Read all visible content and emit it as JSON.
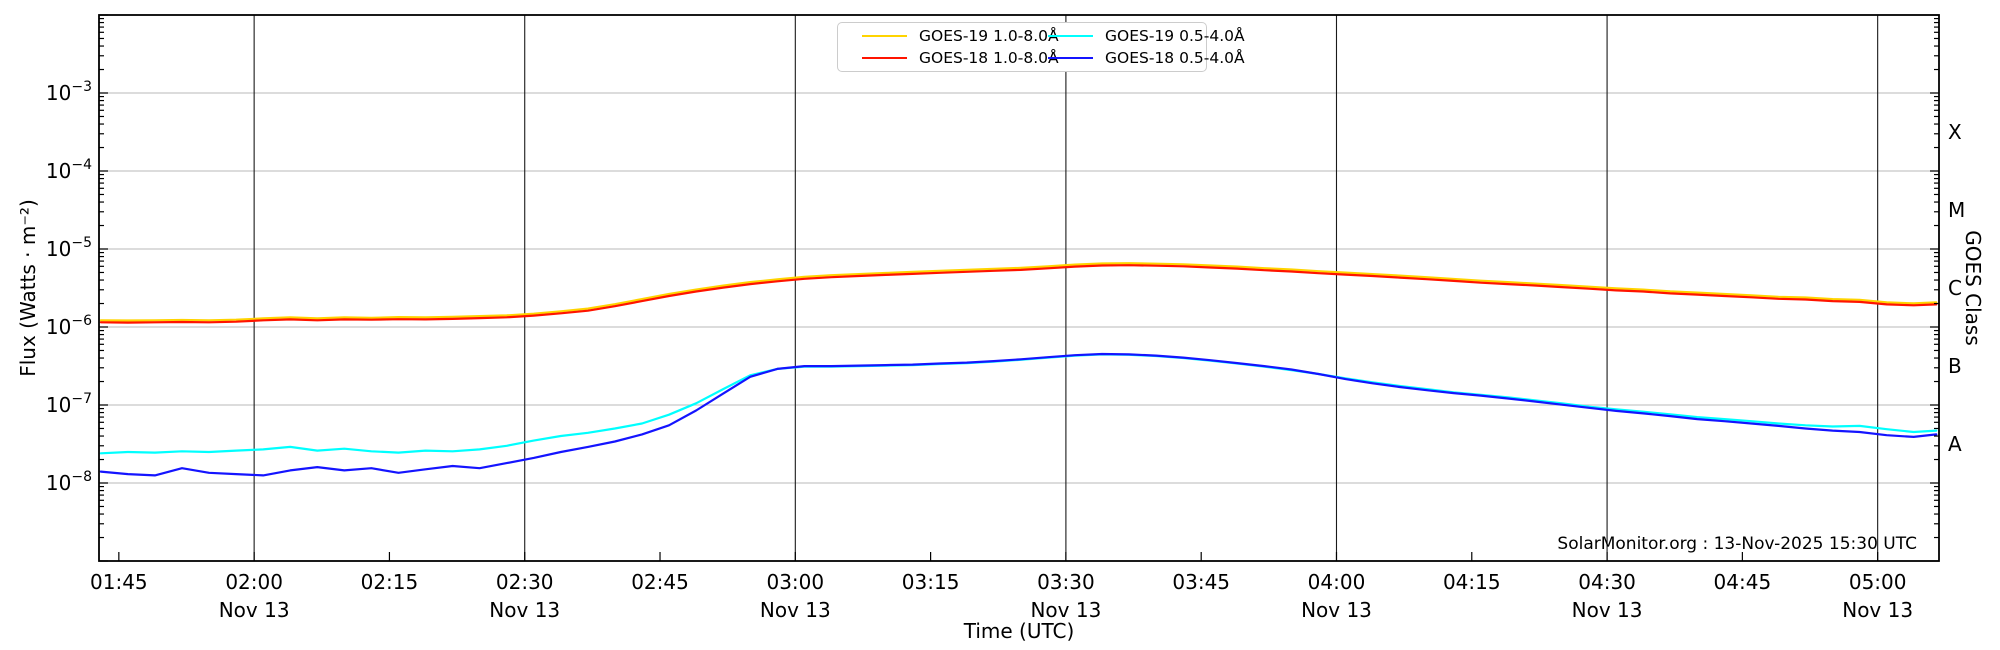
{
  "attribution": "SolarMonitor.org : 13-Nov-2025 15:30 UTC",
  "axes": {
    "x_label": "Time (UTC)",
    "y_label": "Flux (Watts · m⁻²)",
    "right_label": "GOES Class",
    "y_tick_exponents": [
      -3,
      -4,
      -5,
      -6,
      -7,
      -8
    ],
    "x_ticks": [
      {
        "t": 105,
        "label": "01:45"
      },
      {
        "t": 120,
        "label": "02:00",
        "date": "Nov 13"
      },
      {
        "t": 135,
        "label": "02:15"
      },
      {
        "t": 150,
        "label": "02:30",
        "date": "Nov 13"
      },
      {
        "t": 165,
        "label": "02:45"
      },
      {
        "t": 180,
        "label": "03:00",
        "date": "Nov 13"
      },
      {
        "t": 195,
        "label": "03:15"
      },
      {
        "t": 210,
        "label": "03:30",
        "date": "Nov 13"
      },
      {
        "t": 225,
        "label": "03:45"
      },
      {
        "t": 240,
        "label": "04:00",
        "date": "Nov 13"
      },
      {
        "t": 255,
        "label": "04:15"
      },
      {
        "t": 270,
        "label": "04:30",
        "date": "Nov 13"
      },
      {
        "t": 285,
        "label": "04:45"
      },
      {
        "t": 300,
        "label": "05:00",
        "date": "Nov 13"
      }
    ],
    "goes_classes": [
      {
        "label": "X",
        "log_center": -3.5
      },
      {
        "label": "M",
        "log_center": -4.5
      },
      {
        "label": "C",
        "log_center": -5.5
      },
      {
        "label": "B",
        "log_center": -6.5
      },
      {
        "label": "A",
        "log_center": -7.5
      }
    ]
  },
  "legend": {
    "items": [
      {
        "id": "goes-19-long",
        "label": "GOES-19 1.0-8.0Å",
        "color": "#ffd400"
      },
      {
        "id": "goes-18-long",
        "label": "GOES-18 1.0-8.0Å",
        "color": "#ff1400"
      },
      {
        "id": "goes-19-short",
        "label": "GOES-19 0.5-4.0Å",
        "color": "#00ffff"
      },
      {
        "id": "goes-18-short",
        "label": "GOES-18 0.5-4.0Å",
        "color": "#1414ff"
      }
    ]
  },
  "style": {
    "x_grid_color": "#1a1a1a",
    "y_grid_color": "#c8c8c8",
    "spine_color": "#000000",
    "line_width": 2.2
  },
  "chart_data": {
    "type": "line",
    "title": "GOES X-ray flux",
    "xlabel": "Time (UTC)",
    "ylabel": "Flux (Watts · m⁻²)",
    "x_unit": "minutes after 00:00 UTC on 13-Nov-2025",
    "xlim_minutes": [
      102.8,
      306.8
    ],
    "ylim": [
      1e-09,
      0.01
    ],
    "y_scale": "log",
    "grid": true,
    "legend_position": "top center, 2 columns",
    "x": [
      103,
      106,
      109,
      112,
      115,
      118,
      121,
      124,
      127,
      130,
      133,
      136,
      139,
      142,
      145,
      148,
      151,
      154,
      157,
      160,
      163,
      166,
      169,
      172,
      175,
      178,
      181,
      184,
      187,
      190,
      193,
      196,
      199,
      202,
      205,
      208,
      211,
      214,
      217,
      220,
      223,
      226,
      229,
      232,
      235,
      238,
      241,
      244,
      247,
      250,
      253,
      256,
      259,
      262,
      265,
      268,
      271,
      274,
      277,
      280,
      283,
      286,
      289,
      292,
      295,
      298,
      301,
      304,
      306.5
    ],
    "series": [
      {
        "name": "GOES-19 1.0-8.0Å",
        "color": "#ffd400",
        "values": [
          1.22e-06,
          1.21e-06,
          1.22e-06,
          1.23e-06,
          1.22e-06,
          1.24e-06,
          1.29e-06,
          1.33e-06,
          1.29e-06,
          1.33e-06,
          1.31e-06,
          1.34e-06,
          1.33e-06,
          1.35e-06,
          1.38e-06,
          1.41e-06,
          1.48e-06,
          1.59e-06,
          1.72e-06,
          1.96e-06,
          2.28e-06,
          2.65e-06,
          3.02e-06,
          3.39e-06,
          3.76e-06,
          4.08e-06,
          4.4e-06,
          4.61e-06,
          4.77e-06,
          4.93e-06,
          5.09e-06,
          5.25e-06,
          5.41e-06,
          5.57e-06,
          5.72e-06,
          5.99e-06,
          6.31e-06,
          6.52e-06,
          6.57e-06,
          6.47e-06,
          6.36e-06,
          6.15e-06,
          5.94e-06,
          5.67e-06,
          5.46e-06,
          5.19e-06,
          4.98e-06,
          4.77e-06,
          4.56e-06,
          4.35e-06,
          4.13e-06,
          3.92e-06,
          3.76e-06,
          3.6e-06,
          3.45e-06,
          3.29e-06,
          3.13e-06,
          3.02e-06,
          2.86e-06,
          2.76e-06,
          2.65e-06,
          2.54e-06,
          2.44e-06,
          2.39e-06,
          2.28e-06,
          2.23e-06,
          2.07e-06,
          2.01e-06,
          2.07e-06
        ]
      },
      {
        "name": "GOES-18 1.0-8.0Å",
        "color": "#ff1400",
        "values": [
          1.15e-06,
          1.14e-06,
          1.15e-06,
          1.16e-06,
          1.15e-06,
          1.17e-06,
          1.22e-06,
          1.25e-06,
          1.22e-06,
          1.25e-06,
          1.24e-06,
          1.26e-06,
          1.25e-06,
          1.27e-06,
          1.3e-06,
          1.33e-06,
          1.4e-06,
          1.5e-06,
          1.62e-06,
          1.85e-06,
          2.15e-06,
          2.5e-06,
          2.85e-06,
          3.2e-06,
          3.55e-06,
          3.85e-06,
          4.15e-06,
          4.35e-06,
          4.5e-06,
          4.65e-06,
          4.8e-06,
          4.95e-06,
          5.1e-06,
          5.25e-06,
          5.4e-06,
          5.65e-06,
          5.95e-06,
          6.15e-06,
          6.2e-06,
          6.1e-06,
          6e-06,
          5.8e-06,
          5.6e-06,
          5.35e-06,
          5.15e-06,
          4.9e-06,
          4.7e-06,
          4.5e-06,
          4.3e-06,
          4.1e-06,
          3.9e-06,
          3.7e-06,
          3.55e-06,
          3.4e-06,
          3.25e-06,
          3.1e-06,
          2.95e-06,
          2.85e-06,
          2.7e-06,
          2.6e-06,
          2.5e-06,
          2.4e-06,
          2.3e-06,
          2.25e-06,
          2.15e-06,
          2.1e-06,
          1.95e-06,
          1.9e-06,
          1.95e-06
        ]
      },
      {
        "name": "GOES-19 0.5-4.0Å",
        "color": "#00ffff",
        "values": [
          2.4e-08,
          2.5e-08,
          2.45e-08,
          2.55e-08,
          2.5e-08,
          2.6e-08,
          2.7e-08,
          2.9e-08,
          2.6e-08,
          2.75e-08,
          2.55e-08,
          2.45e-08,
          2.6e-08,
          2.55e-08,
          2.7e-08,
          3e-08,
          3.5e-08,
          4e-08,
          4.4e-08,
          5e-08,
          5.8e-08,
          7.5e-08,
          1.05e-07,
          1.6e-07,
          2.4e-07,
          2.9e-07,
          3.1e-07,
          3.1e-07,
          3.15e-07,
          3.2e-07,
          3.25e-07,
          3.35e-07,
          3.45e-07,
          3.6e-07,
          3.8e-07,
          4.05e-07,
          4.3e-07,
          4.45e-07,
          4.4e-07,
          4.25e-07,
          4e-07,
          3.7e-07,
          3.4e-07,
          3.1e-07,
          2.8e-07,
          2.5e-07,
          2.2e-07,
          1.95e-07,
          1.75e-07,
          1.6e-07,
          1.45e-07,
          1.35e-07,
          1.25e-07,
          1.15e-07,
          1.05e-07,
          9.5e-08,
          8.8e-08,
          8.2e-08,
          7.6e-08,
          7e-08,
          6.6e-08,
          6.2e-08,
          5.8e-08,
          5.5e-08,
          5.3e-08,
          5.4e-08,
          4.9e-08,
          4.5e-08,
          4.7e-08
        ]
      },
      {
        "name": "GOES-18 0.5-4.0Å",
        "color": "#1414ff",
        "values": [
          1.4e-08,
          1.3e-08,
          1.25e-08,
          1.55e-08,
          1.35e-08,
          1.3e-08,
          1.25e-08,
          1.45e-08,
          1.6e-08,
          1.45e-08,
          1.55e-08,
          1.35e-08,
          1.5e-08,
          1.65e-08,
          1.55e-08,
          1.8e-08,
          2.1e-08,
          2.5e-08,
          2.9e-08,
          3.4e-08,
          4.2e-08,
          5.5e-08,
          8.5e-08,
          1.4e-07,
          2.3e-07,
          2.9e-07,
          3.15e-07,
          3.15e-07,
          3.2e-07,
          3.25e-07,
          3.3e-07,
          3.4e-07,
          3.5e-07,
          3.65e-07,
          3.85e-07,
          4.1e-07,
          4.35e-07,
          4.5e-07,
          4.45e-07,
          4.3e-07,
          4.05e-07,
          3.75e-07,
          3.45e-07,
          3.15e-07,
          2.85e-07,
          2.5e-07,
          2.15e-07,
          1.9e-07,
          1.7e-07,
          1.55e-07,
          1.42e-07,
          1.32e-07,
          1.21e-07,
          1.11e-07,
          1.01e-07,
          9.2e-08,
          8.4e-08,
          7.8e-08,
          7.2e-08,
          6.6e-08,
          6.2e-08,
          5.8e-08,
          5.4e-08,
          5e-08,
          4.7e-08,
          4.5e-08,
          4.1e-08,
          3.9e-08,
          4.2e-08
        ]
      }
    ]
  }
}
